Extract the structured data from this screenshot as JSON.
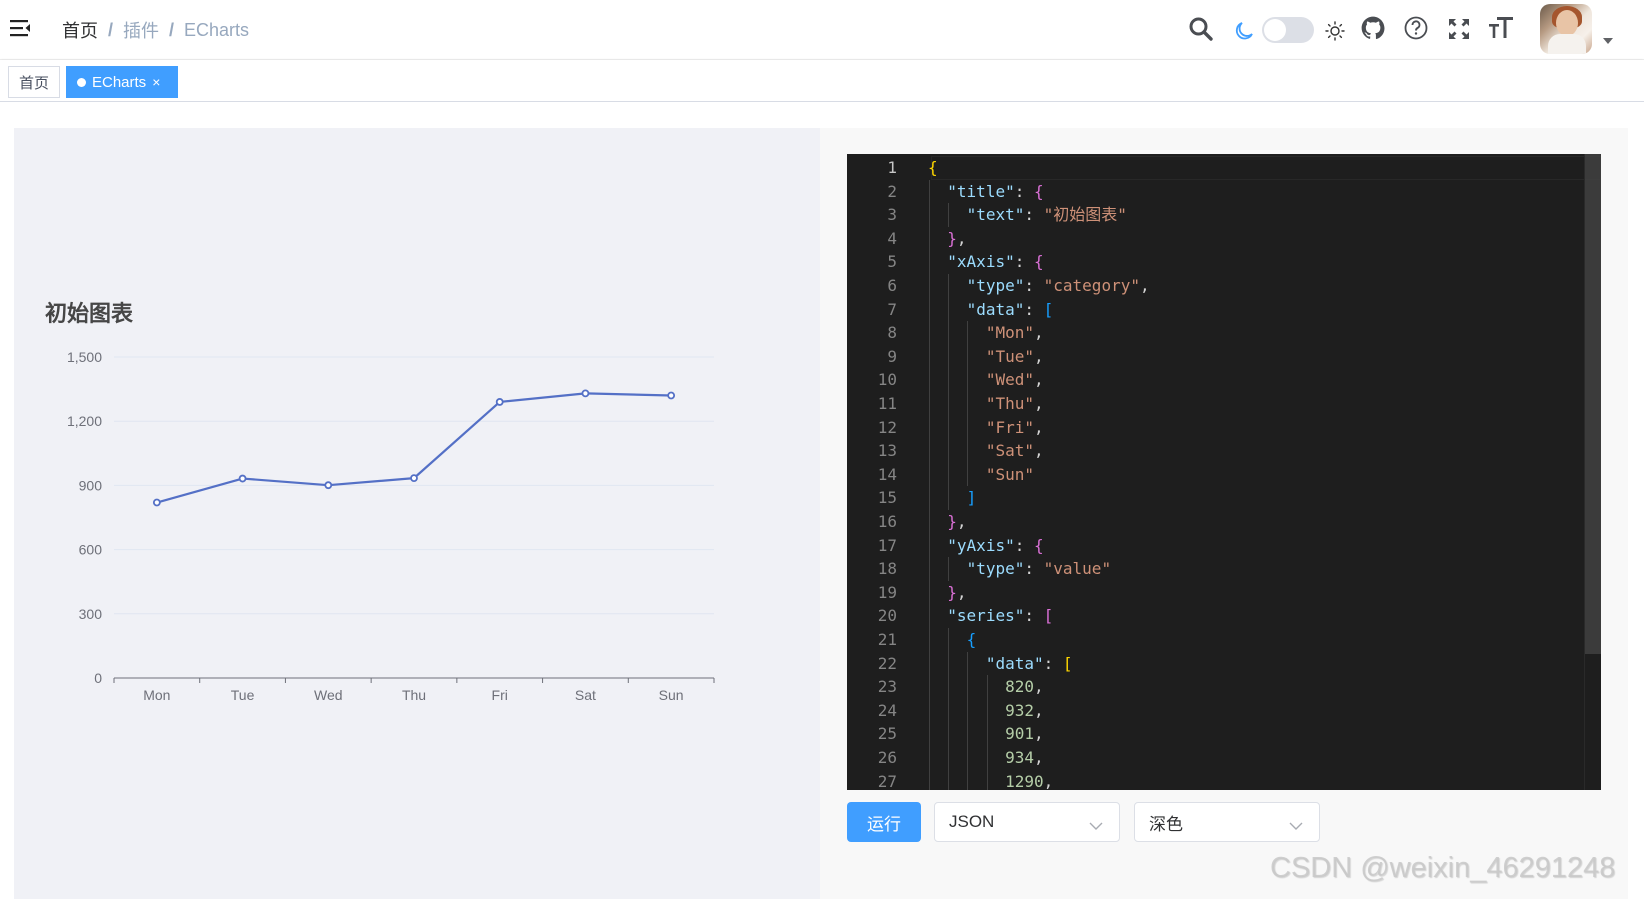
{
  "header": {
    "breadcrumb": [
      "首页",
      "插件",
      "ECharts"
    ],
    "breadcrumb_separator": "/",
    "icons": [
      "menu-toggle-icon",
      "search-icon",
      "moon-icon",
      "theme-switch",
      "sun-icon",
      "github-icon",
      "help-icon",
      "fullscreen-icon",
      "font-size-icon",
      "avatar"
    ],
    "dark_mode": false
  },
  "tags": [
    {
      "label": "首页",
      "active": false
    },
    {
      "label": "ECharts",
      "active": true,
      "close": "×"
    }
  ],
  "colors": {
    "accent": "#409eff",
    "series_line": "#5470c6",
    "chart_bg": "#f0f1f6",
    "editor_bg": "#1e1e1e"
  },
  "chart_data": {
    "type": "line",
    "title": "初始图表",
    "categories": [
      "Mon",
      "Tue",
      "Wed",
      "Thu",
      "Fri",
      "Sat",
      "Sun"
    ],
    "values": [
      820,
      932,
      901,
      934,
      1290,
      1330,
      1320
    ],
    "xlabel": "",
    "ylabel": "",
    "ylim": [
      0,
      1500
    ],
    "yticks": [
      "0",
      "300",
      "600",
      "900",
      "1,200",
      "1,500"
    ],
    "grid": true,
    "legend": null
  },
  "editor": {
    "language": "JSON",
    "theme": "深色",
    "active_line": 1,
    "lines": [
      "{",
      "  \"title\": {",
      "    \"text\": \"初始图表\"",
      "  },",
      "  \"xAxis\": {",
      "    \"type\": \"category\",",
      "    \"data\": [",
      "      \"Mon\",",
      "      \"Tue\",",
      "      \"Wed\",",
      "      \"Thu\",",
      "      \"Fri\",",
      "      \"Sat\",",
      "      \"Sun\"",
      "    ]",
      "  },",
      "  \"yAxis\": {",
      "    \"type\": \"value\"",
      "  },",
      "  \"series\": [",
      "    {",
      "      \"data\": [",
      "        820,",
      "        932,",
      "        901,",
      "        934,",
      "        1290,"
    ]
  },
  "controls": {
    "run_label": "运行",
    "language_select": "JSON",
    "theme_select": "深色"
  },
  "watermark": "CSDN @weixin_46291248"
}
